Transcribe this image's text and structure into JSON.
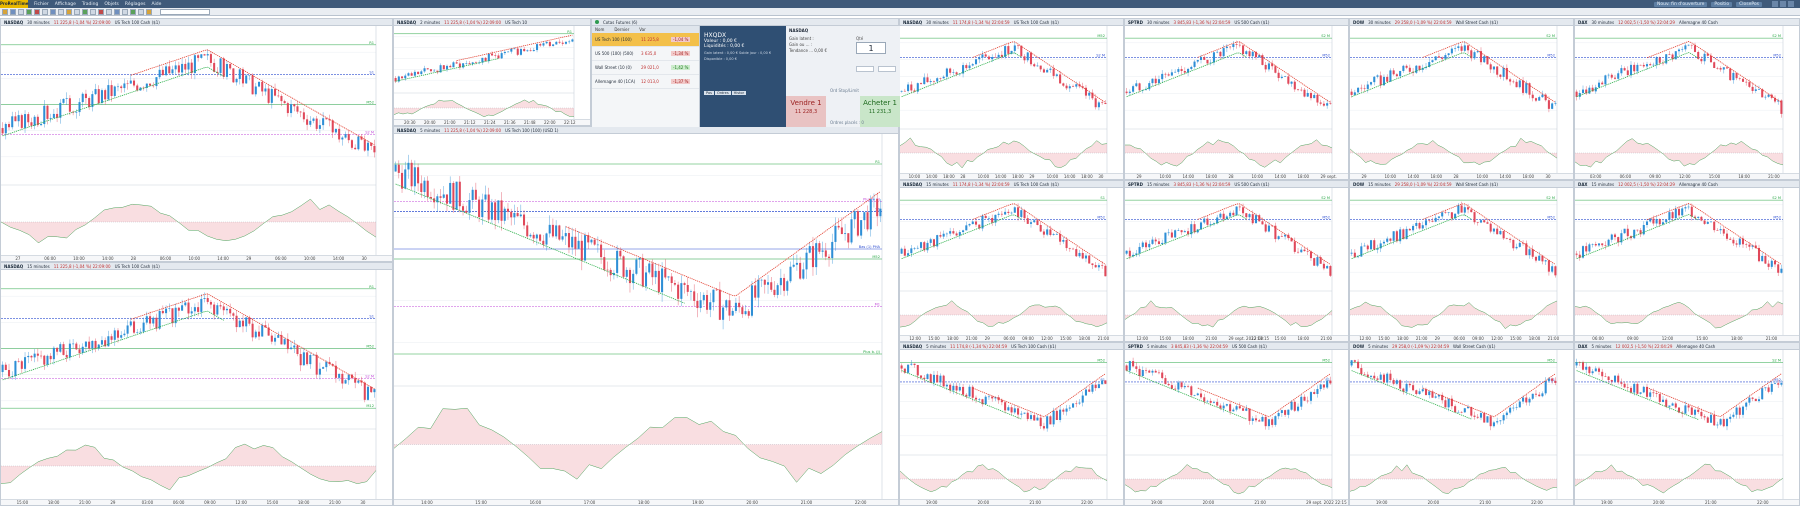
{
  "app": {
    "logo": "ProRealTime",
    "menu": [
      "Fichier",
      "Affichage",
      "Trading",
      "Objets",
      "Réglages",
      "Aide"
    ],
    "right_items": [
      "Nouv. fin d'ouverture",
      "Positio",
      "ClosePos"
    ]
  },
  "colors": {
    "up": "#2e8fd6",
    "down": "#e0485a",
    "ema_red": "#e23b2b",
    "ema_green": "#2bb04a",
    "level_green": "#28a745",
    "level_blue": "#2f4fd1",
    "level_purple": "#c04ad8",
    "grid": "#e9edf2"
  },
  "charts": [
    {
      "symbol": "NASDAQ",
      "interval": "30 minutes",
      "quote": "11 225,8 (-1,04 %) 22:09:00",
      "instrument": "US Tech 100 Cash ($1)",
      "trend": "updown",
      "levels": [
        "R1",
        "S1",
        "M52",
        "S2 M"
      ],
      "xlabels": [
        "27",
        "06:00",
        "10:00",
        "14:00",
        "28",
        "06:00",
        "10:00",
        "14:00",
        "29",
        "06:00",
        "10:00",
        "14:00",
        "30"
      ]
    },
    {
      "symbol": "NASDAQ",
      "interval": "2 minutes",
      "quote": "11 225,8 (-1,04 %) 22:09:00",
      "instrument": "US Tech 10",
      "trend": "up",
      "levels": [
        "R1"
      ],
      "xlabels": [
        "20:30",
        "20:40",
        "21:00",
        "21:12",
        "21:24",
        "21:36",
        "21:48",
        "22:00",
        "22:12"
      ]
    },
    {
      "symbol": "NASDAQ",
      "interval": "15 minutes",
      "quote": "11 225,8 (-1,04 %) 22:09:00",
      "instrument": "US Tech 100 Cash ($1)",
      "trend": "updown",
      "levels": [
        "R1",
        "S1",
        "M52",
        "S2 M",
        "M12"
      ],
      "xlabels": [
        "15:00",
        "18:00",
        "21:00",
        "29",
        "03:00",
        "06:00",
        "09:00",
        "12:00",
        "15:00",
        "18:00",
        "21:00",
        "30"
      ]
    },
    {
      "symbol": "NASDAQ",
      "interval": "5 minutes",
      "quote": "11 225,8 (-1,04 %) 22:09:00",
      "instrument": "US Tech 100 (100) (USD 1)",
      "trend": "downup",
      "levels": [
        "R1",
        "S1",
        "M52",
        "M1",
        "Plus b. (J)",
        "Plus h. (J)",
        "Bas (1) PHA"
      ],
      "xlabels": [
        "14:00",
        "15:00",
        "16:00",
        "17:00",
        "18:00",
        "19:00",
        "20:00",
        "21:00",
        "22:00"
      ]
    },
    {
      "symbol": "NASDAQ",
      "interval": "30 minutes",
      "quote": "11 174,8 (-1,34 %) 22:04:59",
      "instrument": "US Tech 100 Cash ($1)",
      "trend": "updown",
      "levels": [
        "M52",
        "S2 M"
      ],
      "xlabels": [
        "10:00",
        "14:00",
        "18:00",
        "28",
        "10:00",
        "14:00",
        "18:00",
        "29",
        "10:00",
        "14:00",
        "18:00",
        "30"
      ]
    },
    {
      "symbol": "SPTRD",
      "interval": "30 minutes",
      "quote": "3 845,83 (-1,36 %) 22:04:59",
      "instrument": "US 500 Cash ($1)",
      "trend": "updown",
      "levels": [
        "S2 M",
        "M52"
      ],
      "xlabels": [
        "29",
        "10:00",
        "14:00",
        "18:00",
        "28",
        "10:00",
        "14:00",
        "18:00",
        "29 sept. 2022 14:38"
      ]
    },
    {
      "symbol": "DOW",
      "interval": "30 minutes",
      "quote": "29 258,0 (-1,09 %) 22:04:59",
      "instrument": "Wall Street Cash ($1)",
      "trend": "updown",
      "levels": [
        "S2 M",
        "M52"
      ],
      "xlabels": [
        "29",
        "10:00",
        "14:00",
        "18:00",
        "28",
        "10:00",
        "14:00",
        "18:00",
        "30"
      ]
    },
    {
      "symbol": "DAX",
      "interval": "30 minutes",
      "quote": "12 002,5 (-1,50 %) 22:04:29",
      "instrument": "Allemagne 40 Cash",
      "trend": "updown",
      "levels": [
        "S2 M",
        "M52"
      ],
      "xlabels": [
        "03:00",
        "06:00",
        "09:00",
        "12:00",
        "15:00",
        "18:00",
        "21:00"
      ]
    },
    {
      "symbol": "NASDAQ",
      "interval": "15 minutes",
      "quote": "11 174,8 (-1,34 %) 22:04:59",
      "instrument": "US Tech 100 Cash ($1)",
      "trend": "updown",
      "levels": [
        "S1",
        "M52"
      ],
      "xlabels": [
        "12:00",
        "15:00",
        "18:00",
        "21:00",
        "29",
        "06:00",
        "09:00",
        "12:00",
        "15:00",
        "18:00",
        "21:00"
      ]
    },
    {
      "symbol": "SPTRD",
      "interval": "15 minutes",
      "quote": "3 845,83 (-1,36 %) 22:04:59",
      "instrument": "US 500 Cash ($1)",
      "trend": "updown",
      "levels": [
        "S2 M",
        "M52"
      ],
      "xlabels": [
        "12:00",
        "15:00",
        "18:00",
        "21:00",
        "29 sept. 2022 13:15",
        "12:00",
        "15:00",
        "18:00",
        "21:00"
      ]
    },
    {
      "symbol": "DOW",
      "interval": "15 minutes",
      "quote": "29 258,0 (-1,09 %) 22:04:59",
      "instrument": "Wall Street Cash ($1)",
      "trend": "updown",
      "levels": [
        "S2 M",
        "M52"
      ],
      "xlabels": [
        "12:00",
        "15:00",
        "18:00",
        "21:00",
        "29",
        "06:00",
        "09:00",
        "12:00",
        "15:00",
        "18:00",
        "21:00"
      ]
    },
    {
      "symbol": "DAX",
      "interval": "15 minutes",
      "quote": "12 002,5 (-1,50 %) 22:04:29",
      "instrument": "Allemagne 40 Cash",
      "trend": "updown",
      "levels": [
        "S2 M",
        "M52"
      ],
      "xlabels": [
        "06:00",
        "09:00",
        "12:00",
        "15:00",
        "18:00",
        "21:00"
      ]
    },
    {
      "symbol": "NASDAQ",
      "interval": "5 minutes",
      "quote": "11 174,8 (-1,34 %) 22:04:59",
      "instrument": "US Tech 100 Cash ($1)",
      "trend": "downup",
      "levels": [
        "M52",
        "S1"
      ],
      "xlabels": [
        "19:00",
        "20:00",
        "21:00",
        "22:00"
      ]
    },
    {
      "symbol": "SPTRD",
      "interval": "5 minutes",
      "quote": "3 845,83 (-1,36 %) 22:04:59",
      "instrument": "US 500 Cash ($1)",
      "trend": "downup",
      "levels": [
        "M52",
        "S1"
      ],
      "xlabels": [
        "19:00",
        "20:00",
        "21:00",
        "29 sept. 2022 22:15"
      ]
    },
    {
      "symbol": "DOW",
      "interval": "5 minutes",
      "quote": "29 258,0 (-1,09 %) 22:04:59",
      "instrument": "Wall Street Cash ($1)",
      "trend": "downup",
      "levels": [
        "M52",
        "S1"
      ],
      "xlabels": [
        "19:00",
        "20:00",
        "21:00",
        "22:00"
      ]
    },
    {
      "symbol": "DAX",
      "interval": "5 minutes",
      "quote": "12 002,5 (-1,50 %) 22:04:29",
      "instrument": "Allemagne 40 Cash",
      "trend": "downup",
      "levels": [
        "S2 M",
        "M52"
      ],
      "xlabels": [
        "19:00",
        "20:00",
        "21:00",
        "22:00"
      ]
    }
  ],
  "trade": {
    "title": "Cotas   Futures (6)",
    "list_header": [
      "Nom",
      "Dernier",
      "Var"
    ],
    "markets": [
      {
        "name": "US Tech 100 (100)",
        "price": "11 225,8",
        "change": "-1,04 %",
        "selected": true
      },
      {
        "name": "US 500 (100) (500)",
        "price": "3 635,0",
        "change": "-1,34 %",
        "selected": false
      },
      {
        "name": "Wall Street (10 (0)",
        "price": "29 021,0",
        "change": "-1,42 %",
        "selected": false
      },
      {
        "name": "Allemagne 40 (1CA)",
        "price": "12 013,0",
        "change": "-1,37 %",
        "selected": false
      }
    ],
    "account": {
      "name": "HXQDX",
      "value_label": "Valeur : 0,00 €",
      "liquid_label": "Liquidités : 0,00 €",
      "details": "Gain latent : 0,00 €   Solde jour : 0,00 €",
      "details2": "Disponible : 0,00 €",
      "tabs": [
        "Pos",
        "Ordres",
        "Histor"
      ]
    },
    "order": {
      "title": "NASDAQ",
      "qty_label": "Qté",
      "qty": "1",
      "fields": [
        "Gain latent :",
        "Gain ou ... :",
        "Tendance ... 0,00 €"
      ],
      "note": "Ord Stop/Limit",
      "sell_label": "Vendre 1",
      "sell_price": "11 228,3",
      "buy_label": "Acheter 1",
      "buy_price": "11 231,3",
      "bottom": "Ordres placés : 0"
    }
  }
}
